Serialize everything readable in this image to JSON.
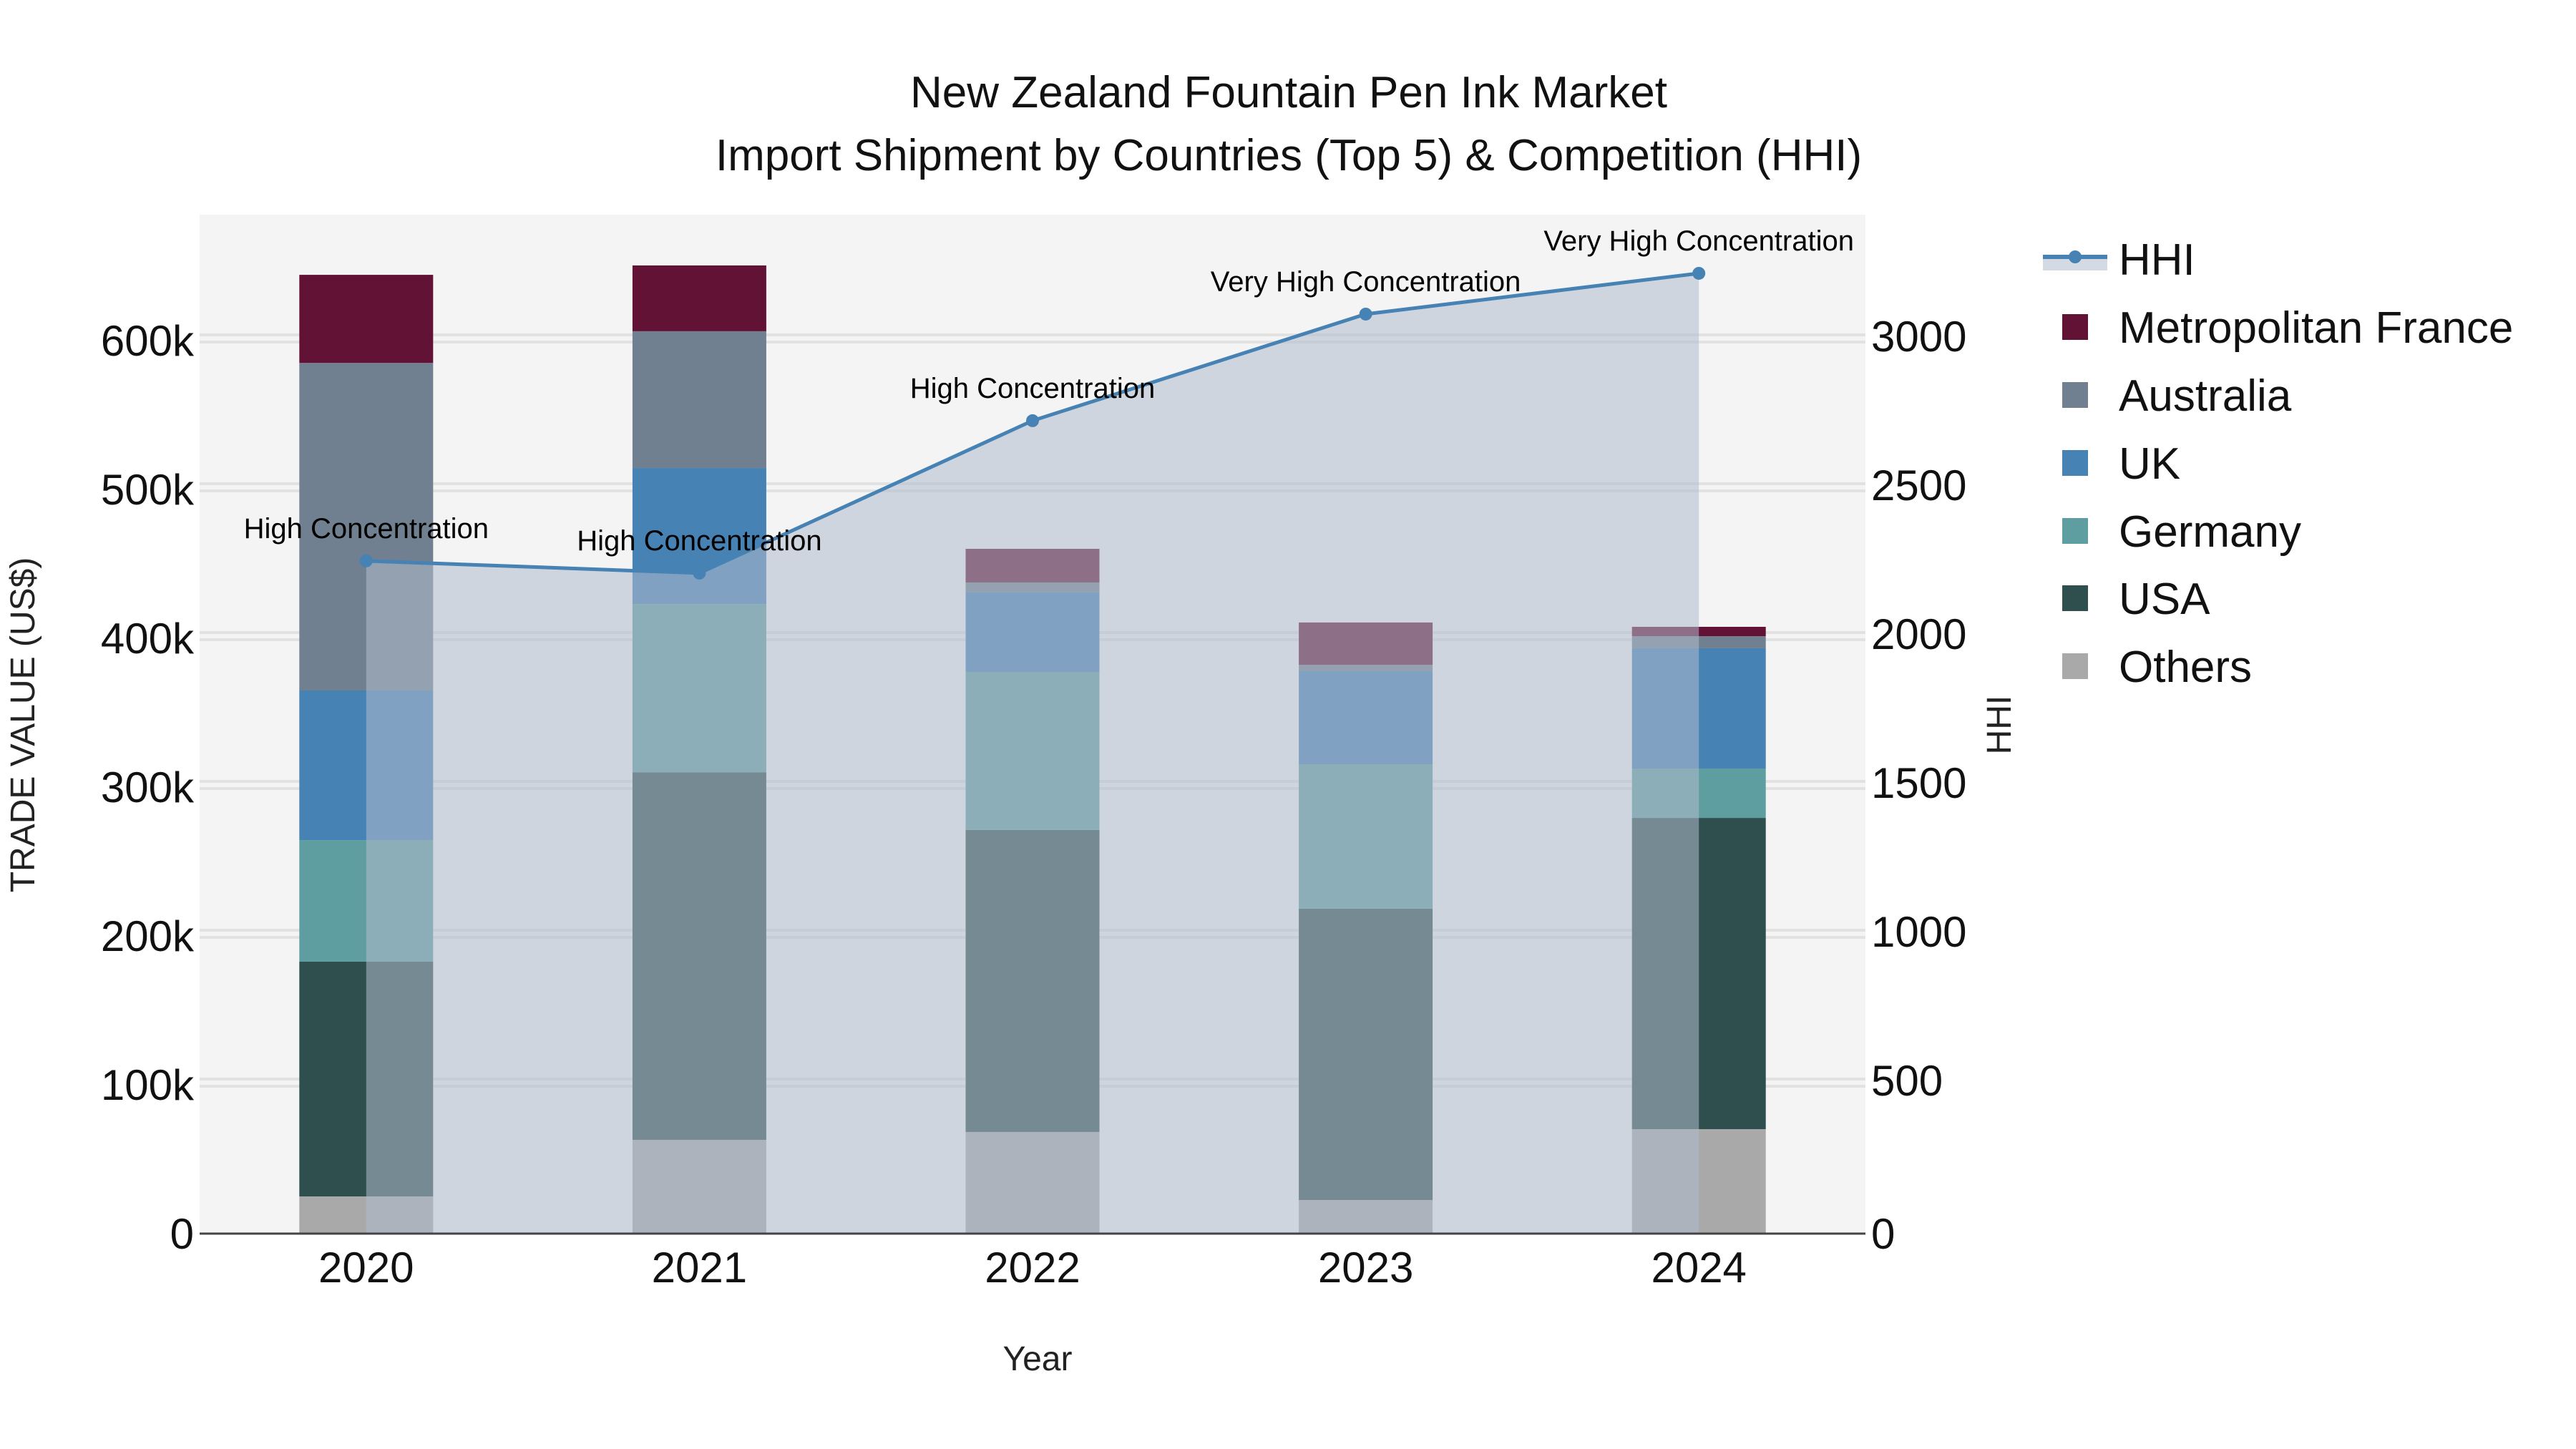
{
  "title": {
    "line1": "New Zealand Fountain Pen Ink Market",
    "line2": "Import Shipment by Countries (Top 5) & Competition (HHI)"
  },
  "axes": {
    "x_title": "Year",
    "y_left_title": "TRADE VALUE (US$)",
    "y_right_title": "HHI",
    "y_left_ticks": [
      "0",
      "100k",
      "200k",
      "300k",
      "400k",
      "500k",
      "600k"
    ],
    "y_right_ticks": [
      "0",
      "500",
      "1000",
      "1500",
      "2000",
      "2500",
      "3000"
    ],
    "x_ticks": [
      "2020",
      "2021",
      "2022",
      "2023",
      "2024"
    ]
  },
  "legend": [
    {
      "label": "HHI",
      "type": "line",
      "color": "#4682b4"
    },
    {
      "label": "Metropolitan France",
      "type": "bar",
      "color": "#621335"
    },
    {
      "label": "Australia",
      "type": "bar",
      "color": "#708090"
    },
    {
      "label": "UK",
      "type": "bar",
      "color": "#4682b4"
    },
    {
      "label": "Germany",
      "type": "bar",
      "color": "#5f9ea0"
    },
    {
      "label": "USA",
      "type": "bar",
      "color": "#2f4f4f"
    },
    {
      "label": "Others",
      "type": "bar",
      "color": "#a9a9a9"
    }
  ],
  "colors": {
    "plot_bg": "#f4f4f4",
    "hhi_line": "#4682b4",
    "hhi_fill": "rgba(176,188,204,0.55)",
    "axis_line": "#444444"
  },
  "chart_data": {
    "type": "bar",
    "subtype": "stacked bar + line (dual axis)",
    "title": "New Zealand Fountain Pen Ink Market — Import Shipment by Countries (Top 5) & Competition (HHI)",
    "xlabel": "Year",
    "ylabel": "TRADE VALUE (US$)",
    "y2label": "HHI",
    "categories": [
      "2020",
      "2021",
      "2022",
      "2023",
      "2024"
    ],
    "ylim": [
      0,
      680000
    ],
    "y2lim": [
      0,
      3400
    ],
    "grid": true,
    "legend_position": "right",
    "series": [
      {
        "name": "Others",
        "axis": "y",
        "type": "bar",
        "color": "#a9a9a9",
        "values": [
          25000,
          63000,
          68300,
          22600,
          70200
        ]
      },
      {
        "name": "USA",
        "axis": "y",
        "type": "bar",
        "color": "#2f4f4f",
        "values": [
          157700,
          247000,
          202900,
          195700,
          209100
        ]
      },
      {
        "name": "Germany",
        "axis": "y",
        "type": "bar",
        "color": "#5f9ea0",
        "values": [
          81700,
          113000,
          106200,
          97100,
          33200
        ]
      },
      {
        "name": "UK",
        "axis": "y",
        "type": "bar",
        "color": "#4682b4",
        "values": [
          100500,
          91400,
          53400,
          62500,
          80800
        ]
      },
      {
        "name": "Australia",
        "axis": "y",
        "type": "bar",
        "color": "#708090",
        "values": [
          220100,
          91900,
          6700,
          4300,
          8100
        ]
      },
      {
        "name": "Metropolitan France",
        "axis": "y",
        "type": "bar",
        "color": "#621335",
        "values": [
          59200,
          44200,
          22600,
          28400,
          6300
        ]
      },
      {
        "name": "HHI",
        "axis": "y2",
        "type": "line",
        "color": "#4682b4",
        "fill": "tozeroy",
        "values": [
          2260,
          2219,
          2731,
          3089,
          3226
        ]
      }
    ],
    "totals": [
      644200,
      650500,
      460100,
      410600,
      407700
    ],
    "annotations": [
      {
        "x": "2020",
        "text": "High Concentration"
      },
      {
        "x": "2021",
        "text": "High Concentration"
      },
      {
        "x": "2022",
        "text": "High Concentration"
      },
      {
        "x": "2023",
        "text": "Very High Concentration"
      },
      {
        "x": "2024",
        "text": "Very High Concentration"
      }
    ]
  }
}
